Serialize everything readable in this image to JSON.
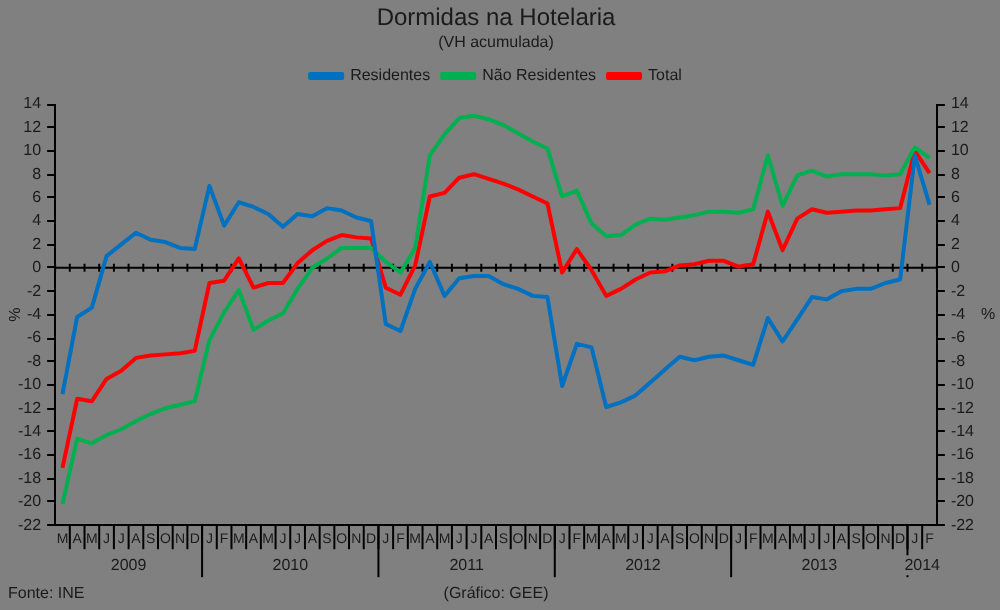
{
  "chart_data": {
    "type": "line",
    "title": "Dormidas na Hotelaria",
    "subtitle": "(VH acumulada)",
    "ylabel": "%",
    "y2label": "%",
    "categories": [
      "M",
      "A",
      "M",
      "J",
      "J",
      "A",
      "S",
      "O",
      "N",
      "D",
      "J",
      "F",
      "M",
      "A",
      "M",
      "J",
      "J",
      "A",
      "S",
      "O",
      "N",
      "D",
      "J",
      "F",
      "M",
      "A",
      "M",
      "J",
      "J",
      "A",
      "S",
      "O",
      "N",
      "D",
      "J",
      "F",
      "M",
      "A",
      "M",
      "J",
      "J",
      "A",
      "S",
      "O",
      "N",
      "D",
      "J",
      "F",
      "M",
      "A",
      "M",
      "J",
      "J",
      "A",
      "S",
      "O",
      "N",
      "D",
      "J",
      "F"
    ],
    "series": [
      {
        "name": "Residentes",
        "color": "#0070c0",
        "values": [
          -10.8,
          -4.2,
          -3.4,
          1.0,
          2.0,
          3.0,
          2.4,
          2.2,
          1.7,
          1.6,
          7.0,
          3.6,
          5.6,
          5.2,
          4.6,
          3.5,
          4.6,
          4.4,
          5.1,
          4.9,
          4.3,
          4.0,
          -4.8,
          -5.4,
          -1.8,
          0.5,
          -2.4,
          -0.9,
          -0.7,
          -0.7,
          -1.4,
          -1.8,
          -2.4,
          -2.5,
          -10.1,
          -6.5,
          -6.8,
          -11.9,
          -11.5,
          -10.9,
          -9.8,
          -8.7,
          -7.6,
          -7.9,
          -7.6,
          -7.5,
          -7.9,
          -8.3,
          -4.3,
          -6.3,
          -4.4,
          -2.5,
          -2.7,
          -2.0,
          -1.8,
          -1.8,
          -1.3,
          -1.0,
          9.6,
          5.4
        ]
      },
      {
        "name": "Não Residentes",
        "color": "#00b050",
        "values": [
          -20.2,
          -14.6,
          -15.0,
          -14.3,
          -13.8,
          -13.1,
          -12.5,
          -12.0,
          -11.7,
          -11.4,
          -6.2,
          -3.8,
          -1.9,
          -5.3,
          -4.5,
          -3.9,
          -1.8,
          0.0,
          0.8,
          1.7,
          1.7,
          1.7,
          0.5,
          -0.4,
          1.7,
          9.6,
          11.4,
          12.8,
          13.0,
          12.7,
          12.2,
          11.5,
          10.8,
          10.2,
          6.1,
          6.6,
          3.8,
          2.7,
          2.8,
          3.7,
          4.2,
          4.1,
          4.3,
          4.5,
          4.8,
          4.8,
          4.7,
          5.0,
          9.6,
          5.3,
          7.9,
          8.3,
          7.8,
          8.0,
          8.0,
          8.0,
          7.9,
          8.0,
          10.3,
          9.4
        ]
      },
      {
        "name": "Total",
        "color": "#ff0000",
        "values": [
          -17.1,
          -11.2,
          -11.4,
          -9.5,
          -8.8,
          -7.7,
          -7.5,
          -7.4,
          -7.3,
          -7.1,
          -1.3,
          -1.1,
          0.8,
          -1.7,
          -1.3,
          -1.3,
          0.4,
          1.5,
          2.3,
          2.8,
          2.6,
          2.5,
          -1.7,
          -2.3,
          0.2,
          6.1,
          6.4,
          7.7,
          8.0,
          7.6,
          7.2,
          6.7,
          6.1,
          5.5,
          -0.4,
          1.6,
          -0.2,
          -2.4,
          -1.8,
          -1.0,
          -0.4,
          -0.3,
          0.2,
          0.3,
          0.6,
          0.6,
          0.1,
          0.3,
          4.8,
          1.5,
          4.2,
          5.0,
          4.7,
          4.8,
          4.9,
          4.9,
          5.0,
          5.1,
          10.0,
          8.1
        ]
      }
    ],
    "ylim": [
      -22,
      14
    ],
    "yticks": [
      -22,
      -20,
      -18,
      -16,
      -14,
      -12,
      -10,
      -8,
      -6,
      -4,
      -2,
      0,
      2,
      4,
      6,
      8,
      10,
      12,
      14
    ],
    "y2lim": [
      -22,
      14
    ],
    "y2ticks": [
      -22,
      -20,
      -18,
      -16,
      -14,
      -12,
      -10,
      -8,
      -6,
      -4,
      -2,
      0,
      2,
      4,
      6,
      8,
      10,
      12,
      14
    ],
    "ref_lines": [
      {
        "axis": "y",
        "value": 0,
        "color": "#000000"
      }
    ],
    "annotations": [
      "2009",
      "2010",
      "2011",
      "2012",
      "2013",
      "2014",
      "Fonte: INE",
      "(Gráfico: GEE)"
    ],
    "grid": false,
    "legend": "top",
    "marker": "none",
    "line_style": "solid"
  }
}
